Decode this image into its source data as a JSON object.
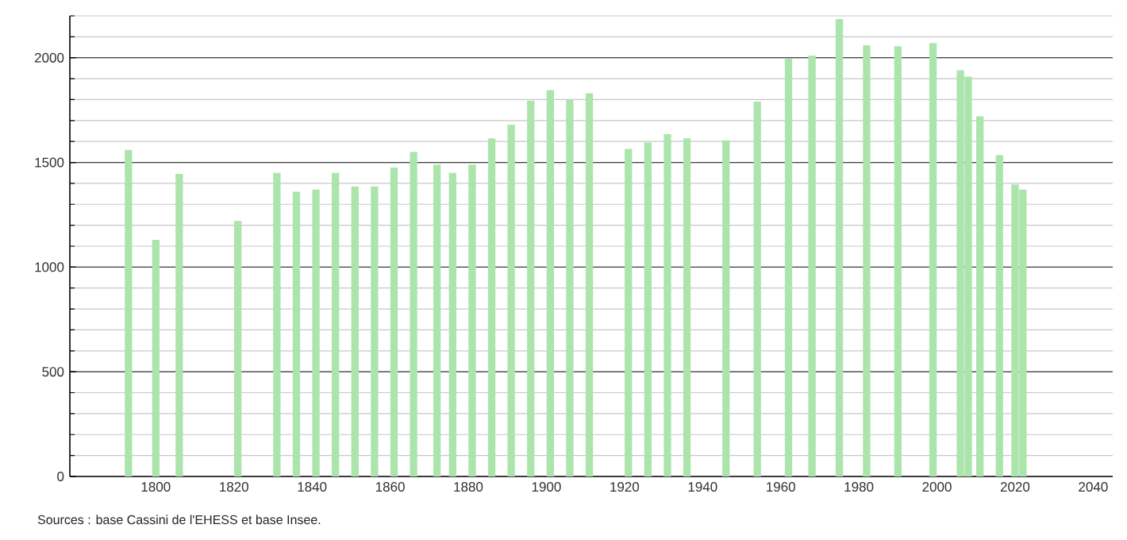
{
  "chart_data": {
    "type": "bar",
    "x": [
      1793,
      1800,
      1806,
      1821,
      1831,
      1836,
      1841,
      1846,
      1851,
      1856,
      1861,
      1866,
      1872,
      1876,
      1881,
      1886,
      1891,
      1896,
      1901,
      1906,
      1911,
      1921,
      1926,
      1931,
      1936,
      1946,
      1954,
      1962,
      1968,
      1975,
      1982,
      1990,
      1999,
      2006,
      2008,
      2011,
      2016,
      2020,
      2022
    ],
    "values": [
      1560,
      1130,
      1445,
      1220,
      1450,
      1360,
      1370,
      1450,
      1385,
      1385,
      1475,
      1550,
      1490,
      1450,
      1490,
      1615,
      1680,
      1795,
      1845,
      1800,
      1830,
      1565,
      1595,
      1635,
      1615,
      1605,
      1790,
      1995,
      2010,
      2185,
      2060,
      2055,
      2070,
      1940,
      1910,
      1720,
      1535,
      1395,
      1370
    ],
    "color": "#ace5ac",
    "xlim": [
      1778,
      2045
    ],
    "ylim": [
      0,
      2200
    ],
    "xticks": [
      1800,
      1820,
      1840,
      1860,
      1880,
      1900,
      1920,
      1940,
      1960,
      1980,
      2000,
      2020,
      2040
    ],
    "yticks": [
      0,
      {
        "value": 100,
        "label": null
      },
      {
        "value": 200,
        "label": null
      },
      {
        "value": 300,
        "label": null
      },
      {
        "value": 400,
        "label": null
      },
      500,
      {
        "value": 600,
        "label": null
      },
      {
        "value": 700,
        "label": null
      },
      {
        "value": 800,
        "label": null
      },
      {
        "value": 900,
        "label": null
      },
      1000,
      {
        "value": 1100,
        "label": null
      },
      {
        "value": 1200,
        "label": null
      },
      {
        "value": 1300,
        "label": null
      },
      {
        "value": 1400,
        "label": null
      },
      1500,
      {
        "value": 1600,
        "label": null
      },
      {
        "value": 1700,
        "label": null
      },
      {
        "value": 1800,
        "label": null
      },
      {
        "value": 1900,
        "label": null
      },
      2000,
      {
        "value": 2100,
        "label": null
      },
      {
        "value": 2200,
        "label": null
      }
    ],
    "grid": "y",
    "annotations": [
      "Sources : base Cassini de l'EHESS et base Insee."
    ]
  }
}
